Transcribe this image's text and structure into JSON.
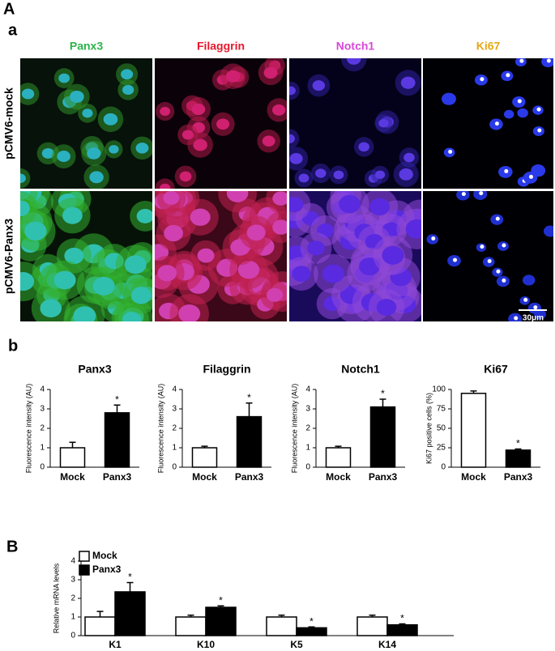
{
  "labels": [
    "A",
    "a",
    "b",
    "B"
  ],
  "image_grid": {
    "columns": [
      "Panx3",
      "Filaggrin",
      "Notch1",
      "Ki67"
    ],
    "column_colors": [
      "#2db34a",
      "#e8182c",
      "#d848d8",
      "#e6a817"
    ],
    "rows": [
      "pCMV6-mock",
      "pCMV6-Panx3"
    ],
    "scale_bar": "30μm"
  },
  "chart_data": [
    {
      "type": "bar",
      "title": "Panx3",
      "y_label": "Fluorescence intensity (AU)",
      "categories": [
        "Mock",
        "Panx3"
      ],
      "values": [
        1,
        2.8
      ],
      "errors": [
        0.28,
        0.4
      ],
      "annotations": [
        null,
        "*"
      ],
      "colors": [
        "#ffffff",
        "#000000"
      ],
      "ylim": [
        0,
        4
      ],
      "yticks": [
        0,
        1,
        2,
        3,
        4
      ]
    },
    {
      "type": "bar",
      "title": "Filaggrin",
      "y_label": "Fluorescence intensity (AU)",
      "categories": [
        "Mock",
        "Panx3"
      ],
      "values": [
        1,
        2.6
      ],
      "errors": [
        0.08,
        0.7
      ],
      "annotations": [
        null,
        "*"
      ],
      "colors": [
        "#ffffff",
        "#000000"
      ],
      "ylim": [
        0,
        4
      ],
      "yticks": [
        0,
        1,
        2,
        3,
        4
      ]
    },
    {
      "type": "bar",
      "title": "Notch1",
      "y_label": "Fluorescence intensity (AU)",
      "categories": [
        "Mock",
        "Panx3"
      ],
      "values": [
        1,
        3.1
      ],
      "errors": [
        0.08,
        0.4
      ],
      "annotations": [
        null,
        "*"
      ],
      "colors": [
        "#ffffff",
        "#000000"
      ],
      "ylim": [
        0,
        4
      ],
      "yticks": [
        0,
        1,
        2,
        3,
        4
      ]
    },
    {
      "type": "bar",
      "title": "Ki67",
      "y_label": "Ki67 positive cells (%)",
      "categories": [
        "Mock",
        "Panx3"
      ],
      "values": [
        95,
        22
      ],
      "errors": [
        3,
        1.5
      ],
      "annotations": [
        null,
        "*"
      ],
      "colors": [
        "#ffffff",
        "#000000"
      ],
      "ylim": [
        0,
        100
      ],
      "yticks": [
        0,
        25,
        50,
        75,
        100
      ]
    },
    {
      "type": "grouped_bar",
      "y_label": "Relative mRNA levels",
      "categories": [
        "K1",
        "K10",
        "K5",
        "K14"
      ],
      "legend": "top-left",
      "ylim": [
        0,
        4
      ],
      "yticks": [
        0,
        1,
        2,
        3,
        4
      ],
      "series": [
        {
          "name": "Mock",
          "color": "#ffffff",
          "values": [
            1,
            1,
            1,
            1
          ],
          "errors": [
            0.3,
            0.1,
            0.1,
            0.1
          ],
          "annotations": [
            null,
            null,
            null,
            null
          ]
        },
        {
          "name": "Panx3",
          "color": "#000000",
          "values": [
            2.35,
            1.52,
            0.42,
            0.58
          ],
          "errors": [
            0.5,
            0.08,
            0.05,
            0.05
          ],
          "annotations": [
            "*",
            "*",
            "*",
            "*"
          ]
        }
      ]
    }
  ]
}
